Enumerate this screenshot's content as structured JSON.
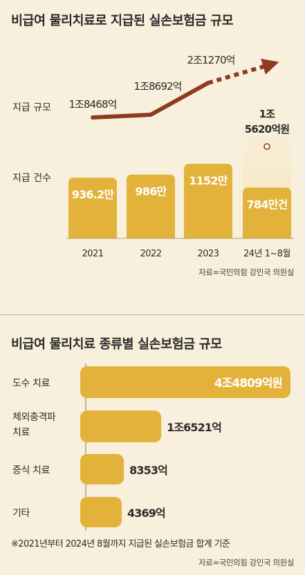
{
  "chart1": {
    "title": "비급여 물리치료로 지급된 실손보험금 규모",
    "row_labels": {
      "amount": "지급 규모",
      "count": "지급 건수"
    },
    "source": "자료=국민의힘 강민국 의원실"
  },
  "chart2": {
    "title": "비급여 물리치료 종류별 실손보험금 규모",
    "footnote": "※2021년부터 2024년 8월까지 지급된 실손보험금 합계 기준",
    "source": "자료=국민의힘 강민국 의원실"
  },
  "chart_data": [
    {
      "type": "bar",
      "title": "비급여 물리치료로 지급된 실손보험금 규모",
      "categories": [
        "2021",
        "2022",
        "2023",
        "24년 1~8월"
      ],
      "series": [
        {
          "name": "지급 건수",
          "values": [
            936.2,
            986,
            1152,
            784
          ],
          "labels": [
            "936.2만",
            "986만",
            "1152만",
            "784만건"
          ]
        },
        {
          "name": "지급 규모",
          "type": "line",
          "values": [
            18468,
            18692,
            21270,
            15620
          ],
          "labels": [
            "1조8468억",
            "1조8692억",
            "2조1270억",
            "1조 5620억원"
          ]
        }
      ]
    },
    {
      "type": "bar",
      "orientation": "horizontal",
      "title": "비급여 물리치료 종류별 실손보험금 규모",
      "categories": [
        "도수 치료",
        "체외충격파 치료",
        "증식 치료",
        "기타"
      ],
      "values": [
        44809,
        16521,
        8353,
        4369
      ],
      "labels": [
        "4조4809억원",
        "1조6521억",
        "8353억",
        "4369억"
      ]
    }
  ],
  "colors": {
    "bar": "#e2b23b",
    "bar_fade": "#f5dfa6",
    "line": "#8e3b22",
    "background": "#f8f0dc",
    "text": "#2b2b2b"
  }
}
